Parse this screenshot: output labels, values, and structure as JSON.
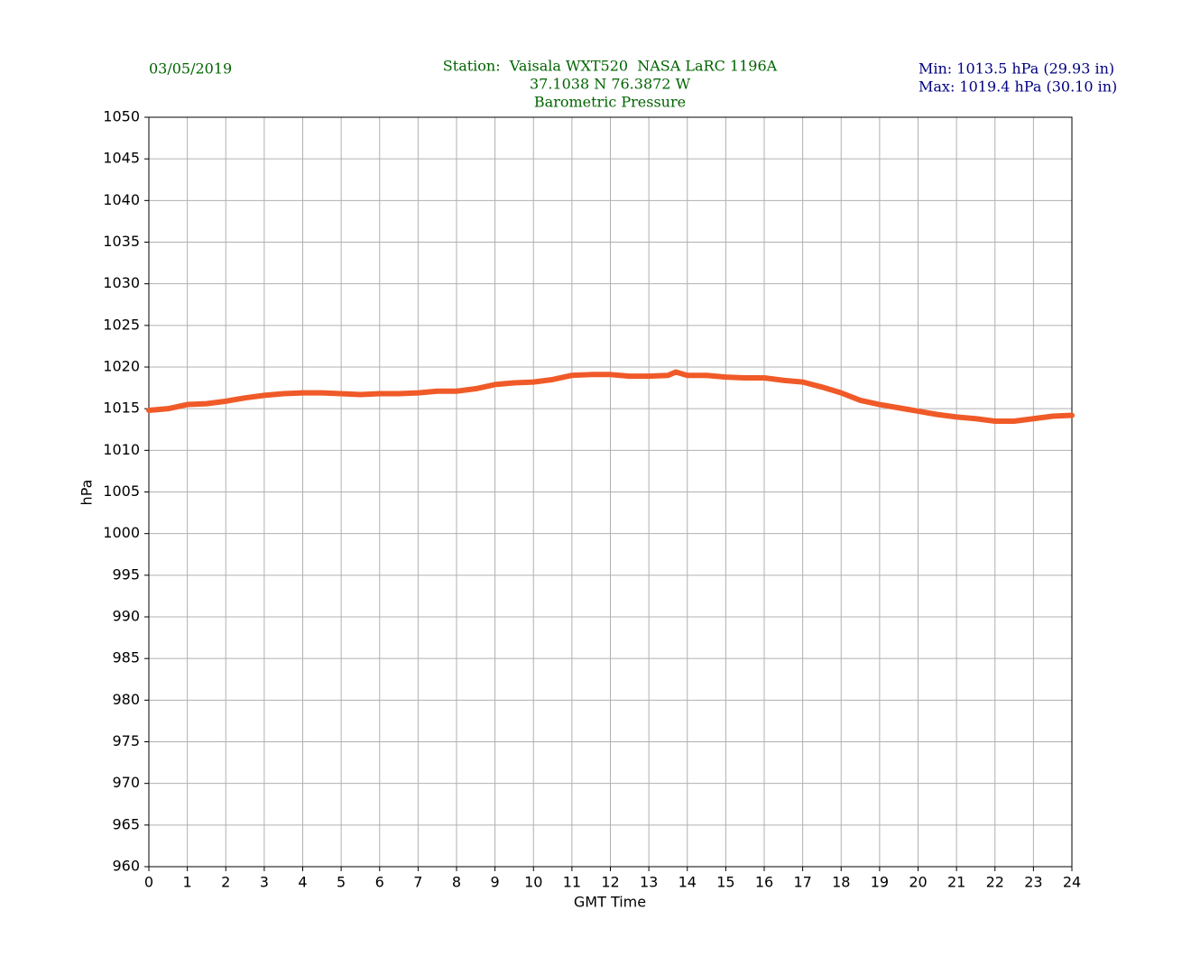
{
  "chart_data": {
    "type": "line",
    "date": "03/05/2019",
    "title_lines": [
      "Station:  Vaisala WXT520  NASA LaRC 1196A",
      "37.1038 N 76.3872 W",
      "Barometric Pressure"
    ],
    "stats": [
      "Min: 1013.5 hPa (29.93 in)",
      "Max: 1019.4 hPa (30.10 in)"
    ],
    "xlabel": "GMT Time",
    "ylabel": "hPa",
    "xlim": [
      0,
      24
    ],
    "ylim": [
      960,
      1050
    ],
    "xticks": [
      0,
      1,
      2,
      3,
      4,
      5,
      6,
      7,
      8,
      9,
      10,
      11,
      12,
      13,
      14,
      15,
      16,
      17,
      18,
      19,
      20,
      21,
      22,
      23,
      24
    ],
    "yticks": [
      960,
      965,
      970,
      975,
      980,
      985,
      990,
      995,
      1000,
      1005,
      1010,
      1015,
      1020,
      1025,
      1030,
      1035,
      1040,
      1045,
      1050
    ],
    "grid": true,
    "series": [
      {
        "name": "Barometric Pressure",
        "color": "#f05a28",
        "x": [
          0,
          0.5,
          1,
          1.5,
          2,
          2.5,
          3,
          3.5,
          4,
          4.5,
          5,
          5.5,
          6,
          6.5,
          7,
          7.5,
          8,
          8.5,
          9,
          9.5,
          10,
          10.5,
          11,
          11.5,
          12,
          12.5,
          13,
          13.5,
          13.7,
          14,
          14.5,
          15,
          15.5,
          16,
          16.5,
          17,
          17.5,
          18,
          18.5,
          19,
          19.5,
          20,
          20.5,
          21,
          21.5,
          22,
          22.5,
          23,
          23.5,
          24
        ],
        "values": [
          1014.8,
          1015.0,
          1015.5,
          1015.6,
          1015.9,
          1016.3,
          1016.6,
          1016.8,
          1016.9,
          1016.9,
          1016.8,
          1016.7,
          1016.8,
          1016.8,
          1016.9,
          1017.1,
          1017.1,
          1017.4,
          1017.9,
          1018.1,
          1018.2,
          1018.5,
          1019.0,
          1019.1,
          1019.1,
          1018.9,
          1018.9,
          1019.0,
          1019.4,
          1019.0,
          1019.0,
          1018.8,
          1018.7,
          1018.7,
          1018.4,
          1018.2,
          1017.6,
          1016.9,
          1016.0,
          1015.5,
          1015.1,
          1014.7,
          1014.3,
          1014.0,
          1013.8,
          1013.5,
          1013.5,
          1013.8,
          1014.1,
          1014.2
        ]
      }
    ]
  }
}
